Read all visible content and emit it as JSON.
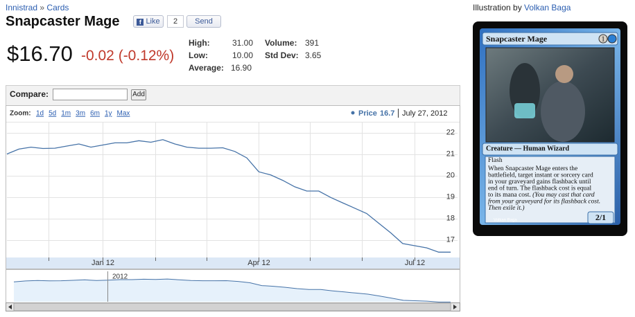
{
  "breadcrumb": {
    "set": "Innistrad",
    "separator": "»",
    "section": "Cards"
  },
  "title": "Snapcaster Mage",
  "social": {
    "like": "Like",
    "like_count": "2",
    "send": "Send"
  },
  "price": "$16.70",
  "change": "-0.02 (-0.12%)",
  "stats": [
    {
      "label": "High:",
      "value": "31.00"
    },
    {
      "label": "Low:",
      "value": "10.00"
    },
    {
      "label": "Average:",
      "value": "16.90"
    },
    {
      "label": "Volume:",
      "value": "391"
    },
    {
      "label": "Std Dev:",
      "value": "3.65"
    }
  ],
  "illustration": {
    "prefix": "Illustration by",
    "artist": "Volkan Baga"
  },
  "card": {
    "name": "Snapcaster Mage",
    "mana": "1",
    "type_line": "Creature — Human Wizard",
    "keyword": "Flash",
    "rules_lines": [
      "When Snapcaster Mage enters the",
      "battlefield, target instant or sorcery card",
      "in your graveyard gains flashback until",
      "end of turn. The flashback cost is equal",
      "to its mana cost."
    ],
    "reminder_lines": [
      "(You may cast that card",
      "from your graveyard for its flashback cost.",
      "Then exile it.)"
    ],
    "power_toughness": "2/1",
    "artist": "Volkan Baga"
  },
  "compare": {
    "label": "Compare:",
    "button": "Add"
  },
  "chart_data": {
    "type": "line",
    "zoom_label": "Zoom:",
    "zoom_options": [
      "1d",
      "5d",
      "1m",
      "3m",
      "6m",
      "1y",
      "Max"
    ],
    "legend_value": 16.7,
    "date": "July 27, 2012",
    "navigator_label": "2012",
    "categories": [
      null,
      null,
      null,
      null,
      null,
      null,
      null,
      null,
      "Jan 12",
      null,
      null,
      null,
      null,
      null,
      null,
      null,
      null,
      null,
      null,
      null,
      null,
      "Apr 12",
      null,
      null,
      null,
      null,
      null,
      null,
      null,
      null,
      null,
      null,
      null,
      null,
      "Jul 12",
      null,
      null,
      null
    ],
    "series": [
      {
        "name": "Price",
        "color": "#4572a7",
        "values": [
          21.03,
          21.26,
          21.35,
          21.29,
          21.3,
          21.4,
          21.5,
          21.35,
          21.45,
          21.55,
          21.55,
          21.65,
          21.58,
          21.7,
          21.5,
          21.35,
          21.3,
          21.3,
          21.32,
          21.15,
          20.85,
          20.2,
          20.05,
          19.8,
          19.5,
          19.3,
          19.3,
          19.0,
          18.75,
          18.5,
          18.25,
          17.8,
          17.35,
          16.85,
          16.75,
          16.65,
          16.45,
          16.45
        ]
      }
    ],
    "ylim": [
      16.2,
      22.5
    ],
    "yticks": [
      17,
      18,
      19,
      20,
      21,
      22
    ],
    "grid": true
  }
}
